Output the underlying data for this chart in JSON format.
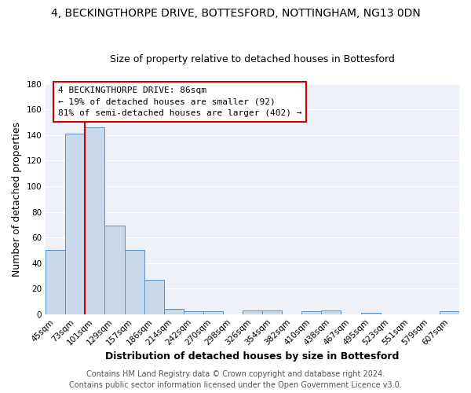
{
  "title": "4, BECKINGTHORPE DRIVE, BOTTESFORD, NOTTINGHAM, NG13 0DN",
  "subtitle": "Size of property relative to detached houses in Bottesford",
  "xlabel": "Distribution of detached houses by size in Bottesford",
  "ylabel": "Number of detached properties",
  "bar_color": "#c9d9ec",
  "bar_edge_color": "#5a8fc0",
  "background_color": "#eef2f8",
  "plot_bg_color": "#eef2f8",
  "grid_color": "#ffffff",
  "bin_labels": [
    "45sqm",
    "73sqm",
    "101sqm",
    "129sqm",
    "157sqm",
    "186sqm",
    "214sqm",
    "242sqm",
    "270sqm",
    "298sqm",
    "326sqm",
    "354sqm",
    "382sqm",
    "410sqm",
    "438sqm",
    "467sqm",
    "495sqm",
    "523sqm",
    "551sqm",
    "579sqm",
    "607sqm"
  ],
  "bar_heights": [
    50,
    141,
    146,
    69,
    50,
    27,
    4,
    2,
    2,
    0,
    3,
    3,
    0,
    2,
    3,
    0,
    1,
    0,
    0,
    0,
    2
  ],
  "ylim": [
    0,
    180
  ],
  "yticks": [
    0,
    20,
    40,
    60,
    80,
    100,
    120,
    140,
    160,
    180
  ],
  "red_line_x": 1.5,
  "annotation_title": "4 BECKINGTHORPE DRIVE: 86sqm",
  "annotation_line1": "← 19% of detached houses are smaller (92)",
  "annotation_line2": "81% of semi-detached houses are larger (402) →",
  "red_line_color": "#cc0000",
  "footer1": "Contains HM Land Registry data © Crown copyright and database right 2024.",
  "footer2": "Contains public sector information licensed under the Open Government Licence v3.0.",
  "title_fontsize": 10,
  "subtitle_fontsize": 9,
  "axis_label_fontsize": 9,
  "tick_fontsize": 7.5,
  "annotation_fontsize": 8,
  "footer_fontsize": 7
}
